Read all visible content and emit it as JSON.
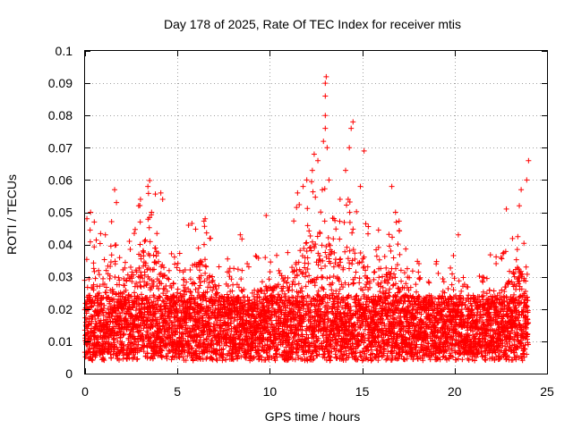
{
  "chart_data": {
    "type": "scatter",
    "title": "Day 178 of 2025, Rate Of TEC Index for receiver mtis",
    "xlabel": "GPS time / hours",
    "ylabel": "ROTI / TECUs",
    "xlim": [
      0,
      25
    ],
    "ylim": [
      0,
      0.1
    ],
    "xticks": [
      0,
      5,
      10,
      15,
      20,
      25
    ],
    "xtick_labels": [
      "0",
      "5",
      "10",
      "15",
      "20",
      "25"
    ],
    "yticks": [
      0,
      0.01,
      0.02,
      0.03,
      0.04,
      0.05,
      0.06,
      0.07,
      0.08,
      0.09,
      0.1
    ],
    "ytick_labels": [
      "0",
      "0.01",
      "0.02",
      "0.03",
      "0.04",
      "0.05",
      "0.06",
      "0.07",
      "0.08",
      "0.09",
      "0.1"
    ],
    "grid": true,
    "marker": "+",
    "color": "#ff0000",
    "series": [
      {
        "name": "ROTI",
        "x_range": [
          0,
          24
        ],
        "sample_step_hours": 0.03,
        "baseline": 0.012,
        "envelope": [
          [
            0.0,
            0.03
          ],
          [
            0.3,
            0.045
          ],
          [
            0.6,
            0.04
          ],
          [
            1.0,
            0.035
          ],
          [
            1.5,
            0.045
          ],
          [
            2.0,
            0.03
          ],
          [
            2.5,
            0.042
          ],
          [
            3.0,
            0.05
          ],
          [
            3.5,
            0.052
          ],
          [
            4.0,
            0.045
          ],
          [
            4.5,
            0.035
          ],
          [
            5.0,
            0.03
          ],
          [
            5.5,
            0.035
          ],
          [
            6.0,
            0.042
          ],
          [
            6.5,
            0.045
          ],
          [
            7.0,
            0.032
          ],
          [
            7.5,
            0.03
          ],
          [
            8.0,
            0.025
          ],
          [
            8.5,
            0.035
          ],
          [
            9.0,
            0.028
          ],
          [
            9.5,
            0.03
          ],
          [
            10.0,
            0.03
          ],
          [
            10.5,
            0.033
          ],
          [
            11.0,
            0.036
          ],
          [
            11.5,
            0.045
          ],
          [
            12.0,
            0.05
          ],
          [
            12.5,
            0.055
          ],
          [
            13.0,
            0.06
          ],
          [
            13.5,
            0.042
          ],
          [
            14.0,
            0.045
          ],
          [
            14.5,
            0.05
          ],
          [
            15.0,
            0.045
          ],
          [
            15.5,
            0.035
          ],
          [
            16.0,
            0.04
          ],
          [
            16.5,
            0.038
          ],
          [
            17.0,
            0.04
          ],
          [
            17.5,
            0.03
          ],
          [
            18.0,
            0.027
          ],
          [
            18.5,
            0.024
          ],
          [
            19.0,
            0.03
          ],
          [
            19.5,
            0.024
          ],
          [
            20.0,
            0.03
          ],
          [
            20.5,
            0.024
          ],
          [
            21.0,
            0.02
          ],
          [
            21.5,
            0.025
          ],
          [
            22.0,
            0.03
          ],
          [
            22.5,
            0.028
          ],
          [
            23.0,
            0.035
          ],
          [
            23.5,
            0.04
          ],
          [
            24.0,
            0.032
          ]
        ],
        "peaks": [
          [
            0.1,
            0.048
          ],
          [
            0.3,
            0.05
          ],
          [
            0.5,
            0.047
          ],
          [
            1.1,
            0.043
          ],
          [
            1.6,
            0.057
          ],
          [
            1.7,
            0.053
          ],
          [
            2.4,
            0.041
          ],
          [
            2.9,
            0.052
          ],
          [
            3.0,
            0.054
          ],
          [
            3.4,
            0.058
          ],
          [
            3.6,
            0.05
          ],
          [
            4.1,
            0.056
          ],
          [
            4.2,
            0.054
          ],
          [
            5.6,
            0.046
          ],
          [
            6.5,
            0.048
          ],
          [
            8.4,
            0.043
          ],
          [
            9.8,
            0.049
          ],
          [
            11.5,
            0.056
          ],
          [
            11.8,
            0.058
          ],
          [
            12.0,
            0.06
          ],
          [
            12.3,
            0.063
          ],
          [
            12.4,
            0.068
          ],
          [
            12.6,
            0.066
          ],
          [
            12.9,
            0.072
          ],
          [
            13.0,
            0.076
          ],
          [
            13.0,
            0.08
          ],
          [
            13.0,
            0.086
          ],
          [
            13.0,
            0.09
          ],
          [
            13.05,
            0.092
          ],
          [
            13.1,
            0.07
          ],
          [
            13.2,
            0.06
          ],
          [
            13.8,
            0.054
          ],
          [
            14.1,
            0.063
          ],
          [
            14.3,
            0.07
          ],
          [
            14.4,
            0.076
          ],
          [
            14.5,
            0.078
          ],
          [
            14.9,
            0.058
          ],
          [
            15.1,
            0.069
          ],
          [
            16.6,
            0.058
          ],
          [
            16.8,
            0.05
          ],
          [
            19.0,
            0.034
          ],
          [
            20.2,
            0.043
          ],
          [
            22.8,
            0.051
          ],
          [
            23.5,
            0.052
          ],
          [
            23.6,
            0.057
          ],
          [
            23.9,
            0.06
          ],
          [
            24.0,
            0.066
          ]
        ]
      }
    ]
  }
}
